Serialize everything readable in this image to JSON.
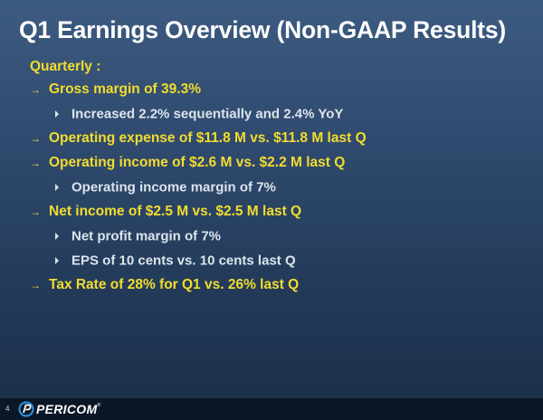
{
  "slide": {
    "title": "Q1 Earnings Overview (Non-GAAP Results)",
    "section_label": "Quarterly :",
    "bullets": [
      {
        "level": 1,
        "text": "Gross margin of 39.3%"
      },
      {
        "level": 2,
        "text": "Increased 2.2% sequentially and  2.4% YoY"
      },
      {
        "level": 1,
        "text": "Operating expense of $11.8 M vs. $11.8 M last Q"
      },
      {
        "level": 1,
        "text": "Operating income of $2.6 M vs. $2.2 M last Q"
      },
      {
        "level": 2,
        "text": "Operating income margin of 7%"
      },
      {
        "level": 1,
        "text": "Net income of $2.5 M vs. $2.5 M last Q"
      },
      {
        "level": 2,
        "text": "Net profit margin of 7%"
      },
      {
        "level": 2,
        "text": "EPS of  10 cents vs. 10 cents last Q"
      },
      {
        "level": 1,
        "text": "Tax Rate of 28% for Q1  vs.  26% last Q"
      }
    ],
    "level1_marker": "→",
    "level2_marker_icon": "triangle-right-icon"
  },
  "footer": {
    "page_number": "4",
    "logo_text": "PERICOM",
    "logo_trademark": "®"
  },
  "colors": {
    "background_top": "#3d5a80",
    "background_bottom": "#1a2d46",
    "title": "#ffffff",
    "level1_text": "#f2dc2e",
    "level2_text": "#dde4ec",
    "footer_bar": "#0b1727",
    "logo_accent": "#2a8fd6"
  }
}
